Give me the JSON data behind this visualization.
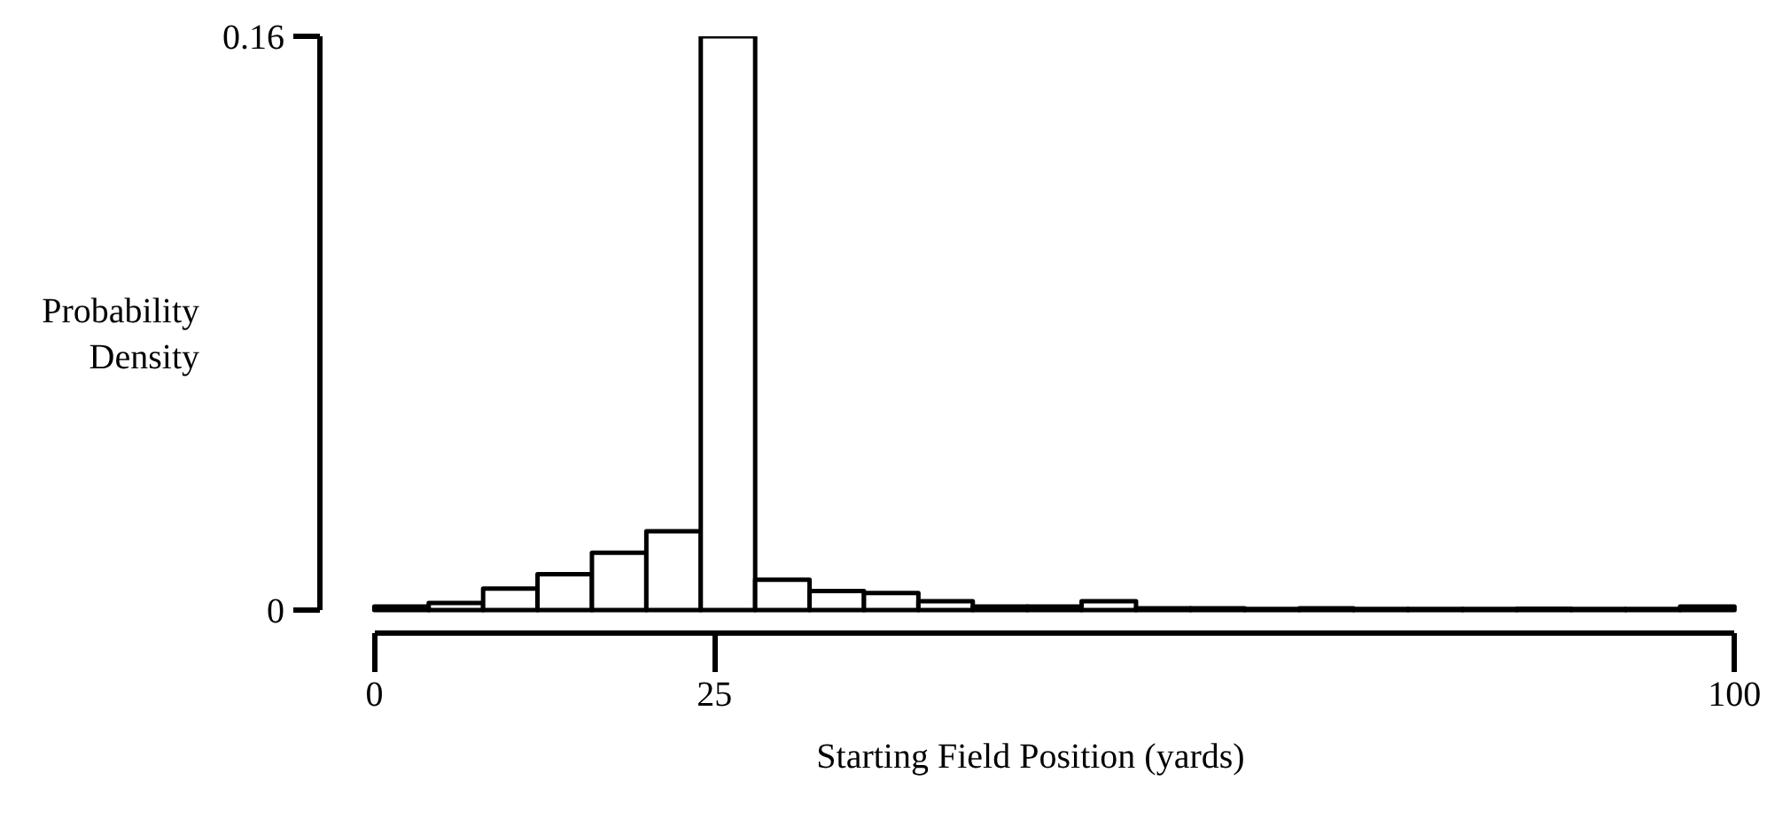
{
  "chart_data": {
    "type": "histogram",
    "xlabel": "Starting Field Position (yards)",
    "ylabel": "Probability\nDensity",
    "bins": [
      0,
      4,
      8,
      12,
      16,
      20,
      24,
      28,
      32,
      36,
      40,
      44,
      48,
      52,
      56,
      60,
      64,
      68,
      72,
      76,
      80,
      84,
      88,
      92,
      96,
      100
    ],
    "values": [
      0.001,
      0.002,
      0.006,
      0.01,
      0.016,
      0.022,
      0.16,
      0.0085,
      0.0053,
      0.0048,
      0.0025,
      0.001,
      0.001,
      0.0025,
      0.0005,
      0.0005,
      0.0003,
      0.0005,
      0.0003,
      0.0003,
      0.0003,
      0.0004,
      0.0003,
      0.0003,
      0.001
    ],
    "color": "#ffffff",
    "xlim": [
      0,
      100
    ],
    "ylim": [
      0,
      0.16
    ],
    "xticks": [
      0,
      25,
      100
    ],
    "yticks": [
      0,
      0.16
    ],
    "grid": false
  }
}
